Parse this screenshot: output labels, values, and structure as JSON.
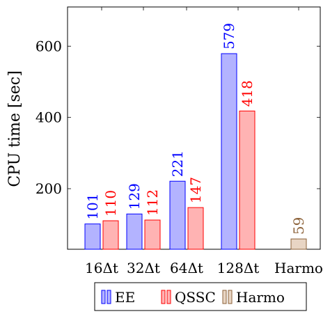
{
  "chart_data": {
    "type": "bar",
    "title": "",
    "xlabel": "",
    "ylabel": "CPU time [sec]",
    "ylim": [
      30,
      710
    ],
    "yticks": [
      200,
      400,
      600
    ],
    "categories": [
      "16Δt",
      "32Δt",
      "64Δt",
      "128Δt",
      "Harmo"
    ],
    "series": [
      {
        "name": "EE",
        "values": [
          101,
          129,
          221,
          579,
          null
        ],
        "color": "#0000ff",
        "fill": "#b3b3ff"
      },
      {
        "name": "QSSC",
        "values": [
          110,
          112,
          147,
          418,
          null
        ],
        "color": "#ff0000",
        "fill": "#ffb3b3"
      },
      {
        "name": "Harmo",
        "values": [
          null,
          null,
          null,
          null,
          59
        ],
        "color": "#8c6239",
        "fill": "#e8d5c4"
      }
    ],
    "data_labels": true,
    "grid": false,
    "legend_position": "bottom"
  }
}
